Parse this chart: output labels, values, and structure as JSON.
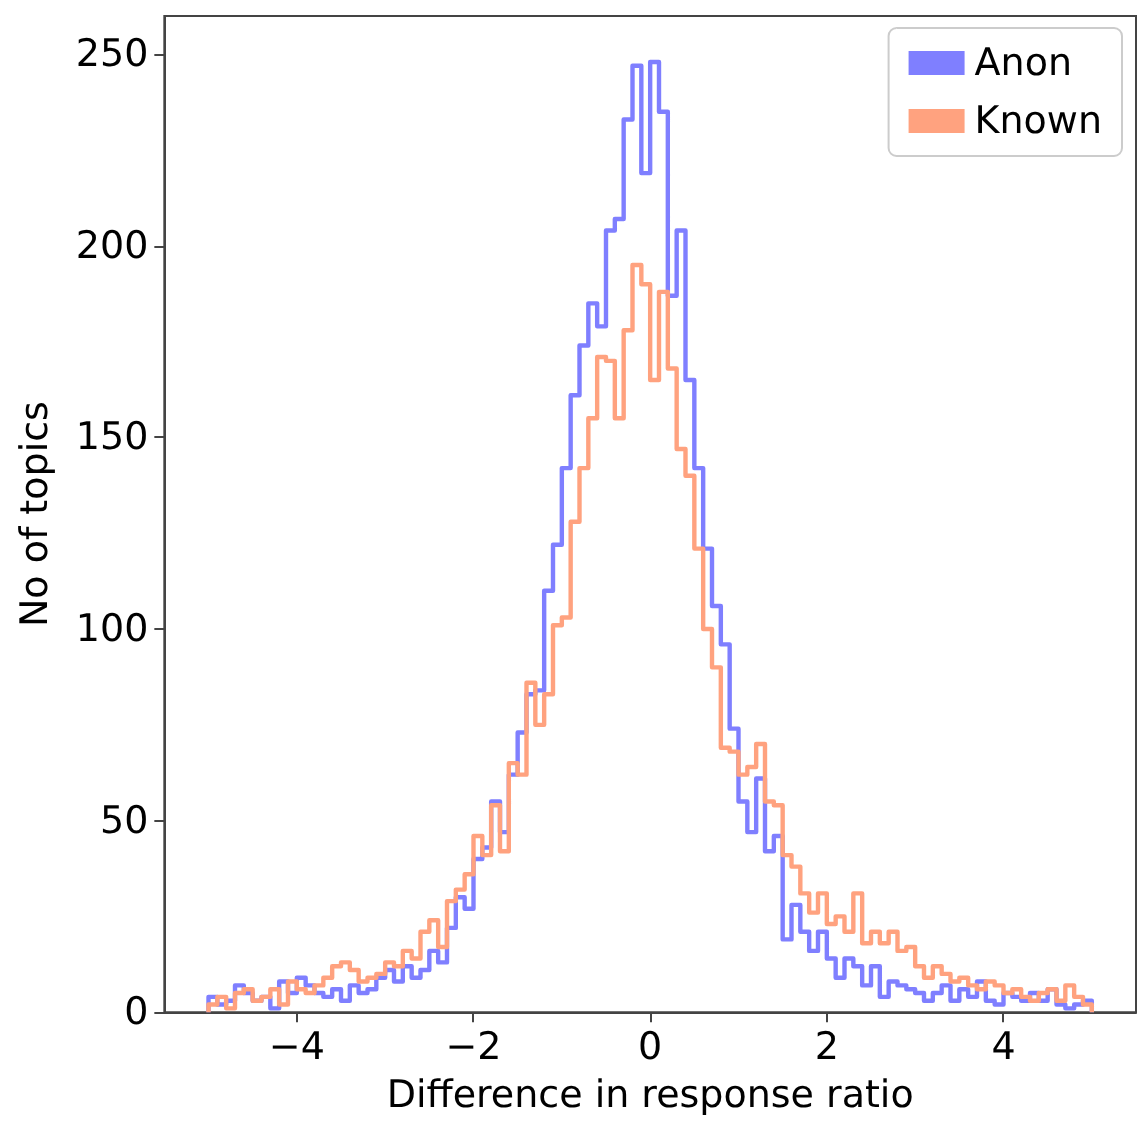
{
  "chart_data": {
    "type": "histogram",
    "xlabel": "Difference in response ratio",
    "ylabel": "No of topics",
    "bins": [
      -5.0,
      -4.9,
      -4.8,
      -4.7,
      -4.6,
      -4.5,
      -4.4,
      -4.3,
      -4.2,
      -4.1,
      -4.0,
      -3.9,
      -3.8,
      -3.7,
      -3.6,
      -3.5,
      -3.4,
      -3.3,
      -3.2,
      -3.1,
      -3.0,
      -2.9,
      -2.8,
      -2.7,
      -2.6,
      -2.5,
      -2.4,
      -2.3,
      -2.2,
      -2.1,
      -2.0,
      -1.9,
      -1.8,
      -1.7,
      -1.6,
      -1.5,
      -1.4,
      -1.3,
      -1.2,
      -1.1,
      -1.0,
      -0.9,
      -0.8,
      -0.7,
      -0.6,
      -0.5,
      -0.4,
      -0.3,
      -0.2,
      -0.1,
      0.0,
      0.1,
      0.2,
      0.3,
      0.4,
      0.5,
      0.6,
      0.7,
      0.8,
      0.9,
      1.0,
      1.1,
      1.2,
      1.3,
      1.4,
      1.5,
      1.6,
      1.7,
      1.8,
      1.9,
      2.0,
      2.1,
      2.2,
      2.3,
      2.4,
      2.5,
      2.6,
      2.7,
      2.8,
      2.9,
      3.0,
      3.1,
      3.2,
      3.3,
      3.4,
      3.5,
      3.6,
      3.7,
      3.8,
      3.9,
      4.0,
      4.1,
      4.2,
      4.3,
      4.4,
      4.5,
      4.6,
      4.7,
      4.8,
      4.9,
      5.0
    ],
    "series": [
      {
        "name": "Anon",
        "color": "#7f7fff",
        "values": [
          4,
          2,
          3,
          7,
          5,
          3,
          4,
          1,
          8,
          5,
          9,
          7,
          5,
          4,
          6,
          3,
          7,
          5,
          6,
          9,
          11,
          8,
          12,
          9,
          11,
          16,
          13,
          22,
          30,
          27,
          40,
          43,
          55,
          47,
          62,
          73,
          83,
          84,
          110,
          122,
          142,
          161,
          174,
          185,
          179,
          204,
          207,
          233,
          247,
          219,
          248,
          235,
          187,
          204,
          165,
          142,
          121,
          106,
          96,
          74,
          55,
          47,
          61,
          42,
          46,
          19,
          28,
          21,
          16,
          21,
          14,
          9,
          14,
          12,
          7,
          12,
          4,
          8,
          7,
          6,
          5,
          3,
          5,
          7,
          3,
          6,
          4,
          8,
          3,
          2,
          5,
          4,
          3,
          5,
          3,
          6,
          2,
          1,
          2,
          3
        ]
      },
      {
        "name": "Known",
        "color": "#ffa27f",
        "values": [
          2,
          4,
          1,
          5,
          6,
          3,
          4,
          6,
          2,
          8,
          6,
          5,
          7,
          9,
          12,
          13,
          11,
          8,
          9,
          10,
          13,
          12,
          16,
          14,
          21,
          24,
          17,
          29,
          32,
          36,
          46,
          41,
          54,
          42,
          65,
          62,
          86,
          75,
          83,
          101,
          103,
          128,
          142,
          155,
          171,
          170,
          155,
          178,
          195,
          190,
          165,
          188,
          168,
          147,
          140,
          121,
          100,
          90,
          69,
          68,
          62,
          64,
          70,
          55,
          54,
          41,
          38,
          31,
          26,
          31,
          23,
          25,
          21,
          31,
          18,
          21,
          18,
          21,
          16,
          17,
          12,
          9,
          12,
          10,
          8,
          9,
          7,
          6,
          8,
          7,
          5,
          6,
          4,
          3,
          5,
          6,
          3,
          7,
          4,
          2
        ]
      }
    ],
    "xlim": [
      -5.5,
      5.5
    ],
    "ylim": [
      0,
      260
    ],
    "xticks": [
      -4,
      -2,
      0,
      2,
      4
    ],
    "yticks": [
      0,
      50,
      100,
      150,
      200,
      250
    ],
    "legend": "top right"
  }
}
